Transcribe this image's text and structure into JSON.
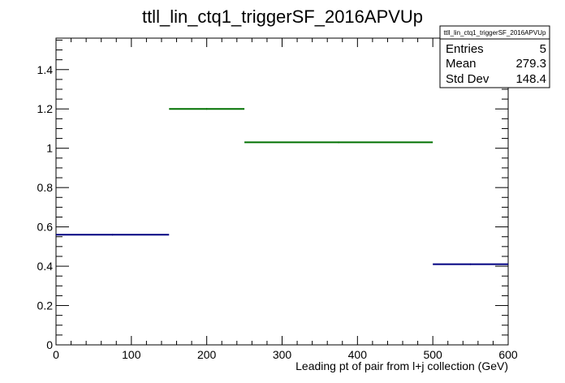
{
  "chart_data": {
    "type": "step-histogram",
    "title": "ttll_lin_ctq1_triggerSF_2016APVUp",
    "xlabel": "Leading pt of pair from l+j collection (GeV)",
    "ylabel": "",
    "xlim": [
      0,
      600
    ],
    "ylim": [
      0,
      1.56
    ],
    "x_ticks": [
      0,
      100,
      200,
      300,
      400,
      500,
      600
    ],
    "x_tick_labels": [
      "0",
      "100",
      "200",
      "300",
      "400",
      "500",
      "600"
    ],
    "y_ticks": [
      0,
      0.2,
      0.4,
      0.6,
      0.8,
      1,
      1.2,
      1.4
    ],
    "y_tick_labels": [
      "0",
      "0.2",
      "0.4",
      "0.6",
      "0.8",
      "1",
      "1.2",
      "1.4"
    ],
    "grid": false,
    "bins": [
      {
        "x_low": 0,
        "x_high": 150,
        "value": 0.56,
        "color": "#000080"
      },
      {
        "x_low": 150,
        "x_high": 250,
        "value": 1.2,
        "color": "#007000"
      },
      {
        "x_low": 250,
        "x_high": 500,
        "value": 1.03,
        "color": "#007000"
      },
      {
        "x_low": 500,
        "x_high": 600,
        "value": 0.41,
        "color": "#000080"
      }
    ],
    "stats_box": {
      "name": "ttll_lin_ctq1_triggerSF_2016APVUp",
      "rows": [
        {
          "label": "Entries",
          "value": "5"
        },
        {
          "label": "Mean",
          "value": "279.3"
        },
        {
          "label": "Std Dev",
          "value": "148.4"
        }
      ]
    }
  }
}
